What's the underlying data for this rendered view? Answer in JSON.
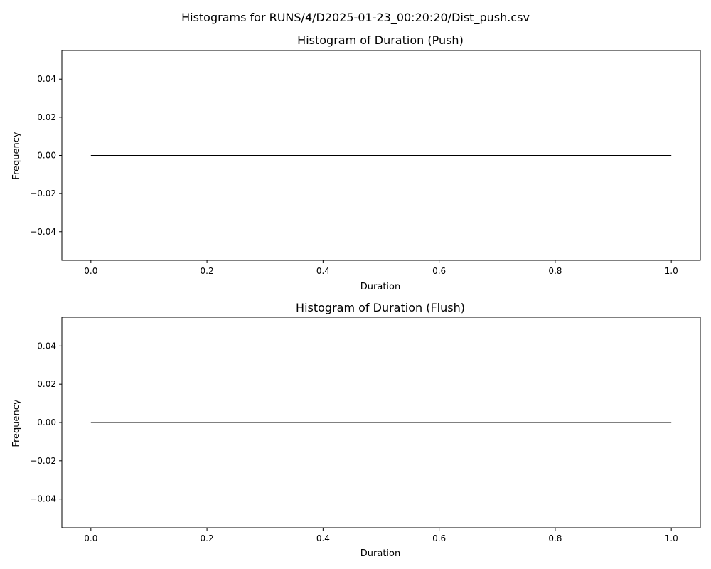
{
  "suptitle": "Histograms for RUNS/4/D2025-01-23_00:20:20/Dist_push.csv",
  "colors": {
    "edge": "#000000",
    "axes": "#000000",
    "background": "#ffffff"
  },
  "chart_data": [
    {
      "type": "bar",
      "title": "Histogram of Duration (Push)",
      "xlabel": "Duration",
      "ylabel": "Frequency",
      "xlim": [
        -0.05,
        1.05
      ],
      "ylim": [
        -0.055,
        0.055
      ],
      "xticks": [
        0.0,
        0.2,
        0.4,
        0.6,
        0.8,
        1.0
      ],
      "xtick_labels": [
        "0.0",
        "0.2",
        "0.4",
        "0.6",
        "0.8",
        "1.0"
      ],
      "yticks": [
        0.04,
        0.02,
        0.0,
        -0.02,
        -0.04
      ],
      "ytick_labels": [
        "0.04",
        "0.02",
        "0.00",
        "−0.02",
        "−0.04"
      ],
      "bins": {
        "x_start": 0.0,
        "x_end": 1.0,
        "values": [
          0
        ]
      },
      "grid": false
    },
    {
      "type": "bar",
      "title": "Histogram of Duration (Flush)",
      "xlabel": "Duration",
      "ylabel": "Frequency",
      "xlim": [
        -0.05,
        1.05
      ],
      "ylim": [
        -0.055,
        0.055
      ],
      "xticks": [
        0.0,
        0.2,
        0.4,
        0.6,
        0.8,
        1.0
      ],
      "xtick_labels": [
        "0.0",
        "0.2",
        "0.4",
        "0.6",
        "0.8",
        "1.0"
      ],
      "yticks": [
        0.04,
        0.02,
        0.0,
        -0.02,
        -0.04
      ],
      "ytick_labels": [
        "0.04",
        "0.02",
        "0.00",
        "−0.02",
        "−0.04"
      ],
      "bins": {
        "x_start": 0.0,
        "x_end": 1.0,
        "values": [
          0
        ]
      },
      "grid": false
    }
  ]
}
